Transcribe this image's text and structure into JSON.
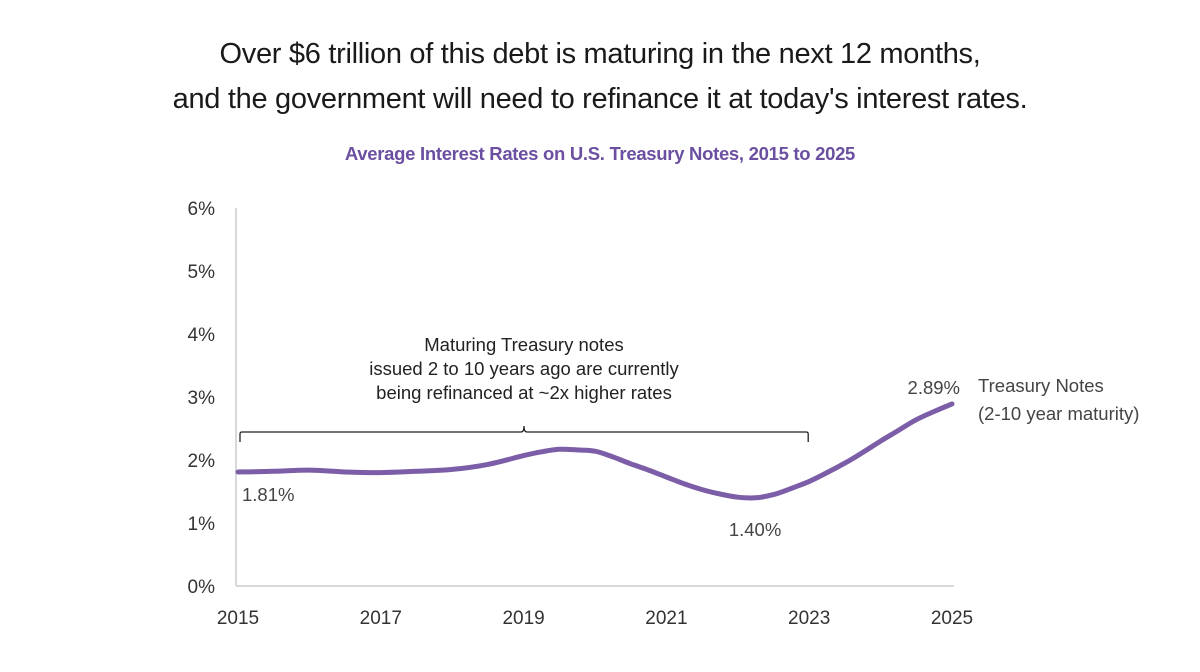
{
  "headline": {
    "line1": "Over $6 trillion of this debt is maturing in the next 12 months,",
    "line2": "and the government will need to refinance it at today's interest rates."
  },
  "colors": {
    "series": "#7b5ea7",
    "title": "#6b4fa0",
    "axis": "#d9d9d9",
    "text": "#333333"
  },
  "chart_data": {
    "type": "line",
    "title": "Average Interest Rates on U.S. Treasury Notes, 2015 to 2025",
    "xlabel": "",
    "ylabel": "",
    "xlim": [
      2015,
      2025
    ],
    "ylim": [
      0,
      6
    ],
    "x_ticks": [
      2015,
      2017,
      2019,
      2021,
      2023,
      2025
    ],
    "x_tick_labels": [
      "2015",
      "2017",
      "2019",
      "2021",
      "2023",
      "2025"
    ],
    "y_ticks": [
      0,
      1,
      2,
      3,
      4,
      5,
      6
    ],
    "y_tick_labels": [
      "0%",
      "1%",
      "2%",
      "3%",
      "4%",
      "5%",
      "6%"
    ],
    "grid": false,
    "series": [
      {
        "name": "Treasury Notes (2-10 year maturity)",
        "x": [
          2015.0,
          2015.5,
          2016.0,
          2016.5,
          2017.0,
          2017.5,
          2018.0,
          2018.5,
          2019.0,
          2019.25,
          2019.5,
          2019.75,
          2020.0,
          2020.25,
          2020.5,
          2020.75,
          2021.0,
          2021.25,
          2021.5,
          2021.75,
          2022.0,
          2022.25,
          2022.5,
          2022.75,
          2023.0,
          2023.25,
          2023.5,
          2023.75,
          2024.0,
          2024.25,
          2024.5,
          2024.75,
          2025.0
        ],
        "values": [
          1.81,
          1.82,
          1.84,
          1.81,
          1.8,
          1.82,
          1.85,
          1.93,
          2.07,
          2.13,
          2.17,
          2.16,
          2.14,
          2.05,
          1.94,
          1.84,
          1.73,
          1.62,
          1.53,
          1.46,
          1.41,
          1.4,
          1.45,
          1.55,
          1.66,
          1.8,
          1.95,
          2.12,
          2.3,
          2.47,
          2.64,
          2.77,
          2.89
        ]
      }
    ],
    "data_labels": [
      {
        "text": "1.81%",
        "x": 2015.0,
        "y": 1.81,
        "position": "below"
      },
      {
        "text": "1.40%",
        "x": 2022.2,
        "y": 1.4,
        "position": "below"
      },
      {
        "text": "2.89%",
        "x": 2025.0,
        "y": 2.89,
        "position": "left"
      }
    ],
    "legend": {
      "placement": "right-end-of-line",
      "lines": [
        "Treasury Notes",
        "(2-10 year maturity)"
      ]
    },
    "annotation": {
      "lines": [
        "Maturing Treasury notes",
        "issued 2 to 10 years ago are currently",
        "being refinanced at ~2x higher rates"
      ],
      "bracket_from": 2015.0,
      "bracket_to": 2023.0
    }
  }
}
